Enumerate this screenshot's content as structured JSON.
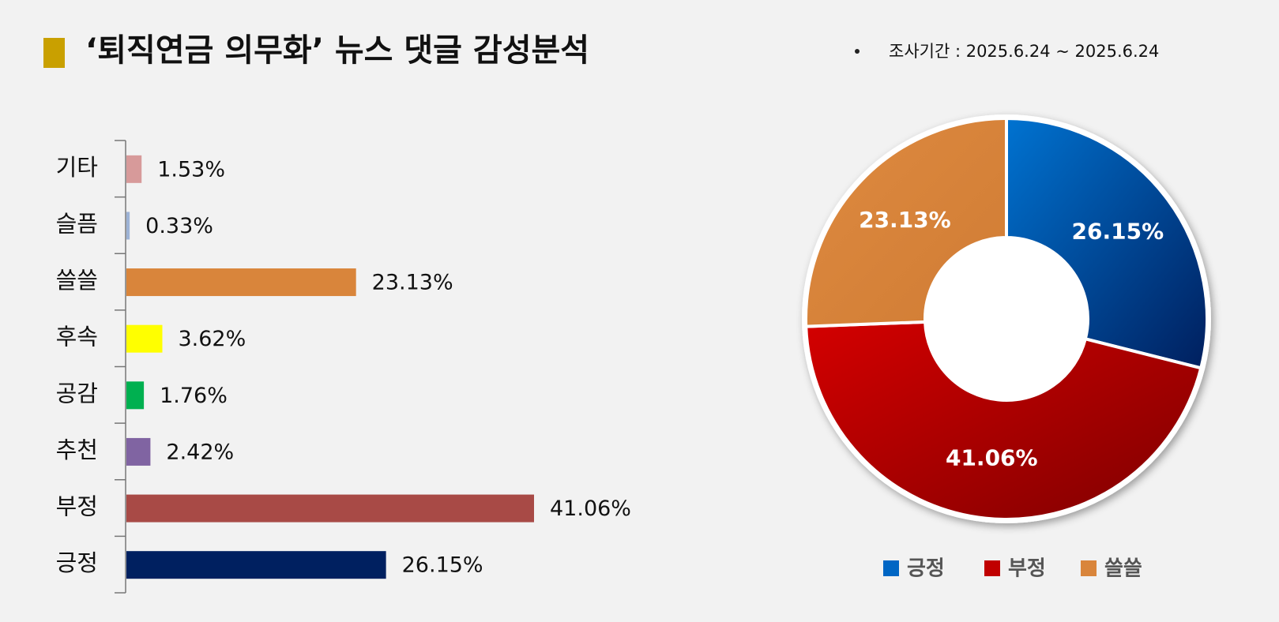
{
  "header": {
    "title": "‘퇴직연금 의무화’ 뉴스 댓글 감성분석",
    "period": "조사기간 : 2025.6.24 ~ 2025.6.24"
  },
  "chart_data": [
    {
      "type": "hbar",
      "categories": [
        "기타",
        "슬픔",
        "쓸쓸",
        "후속",
        "공감",
        "추천",
        "부정",
        "긍정"
      ],
      "values": [
        1.53,
        0.33,
        23.13,
        3.62,
        1.76,
        2.42,
        41.06,
        26.15
      ],
      "value_labels": [
        "1.53%",
        "0.33%",
        "23.13%",
        "3.62%",
        "1.76%",
        "2.42%",
        "41.06%",
        "26.15%"
      ],
      "colors": [
        "#d79a9a",
        "#9db3d6",
        "#d9853b",
        "#ffff00",
        "#00b050",
        "#8064a2",
        "#a84a46",
        "#002060"
      ]
    },
    {
      "type": "donut",
      "categories": [
        "긍정",
        "부정",
        "쓸쓸"
      ],
      "values": [
        26.15,
        41.06,
        23.13
      ],
      "value_labels": [
        "26.15%",
        "41.06%",
        "23.13%"
      ],
      "colors": [
        "#0066c4",
        "#c00000",
        "#d9853b"
      ]
    }
  ]
}
